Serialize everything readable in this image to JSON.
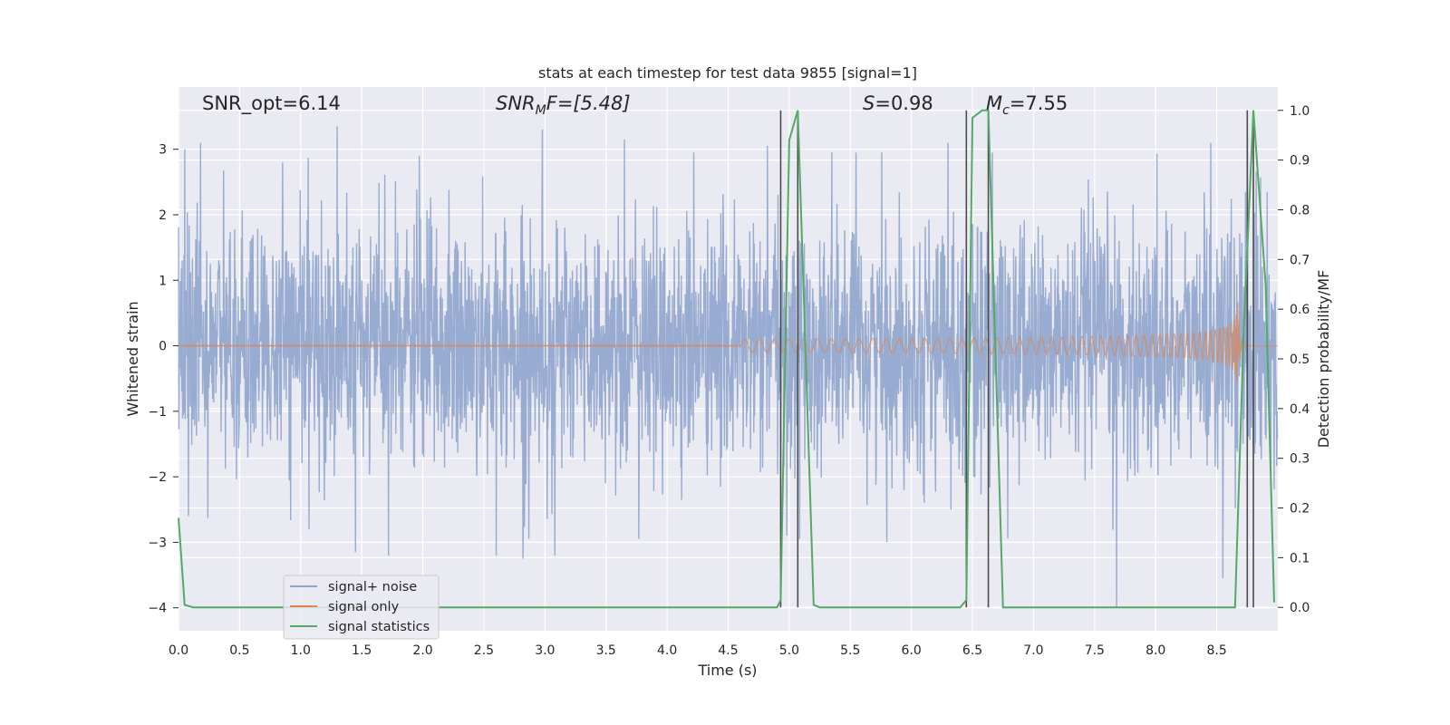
{
  "chart_data": {
    "type": "line",
    "title": "stats at each timestep for test data 9855 [signal=1]",
    "xlabel": "Time (s)",
    "ylabel": "Whitened strain",
    "y2label": "Detection probability/MF",
    "xlim": [
      0,
      9
    ],
    "ylim": [
      -4.35,
      3.95
    ],
    "y2lim": [
      -0.047,
      1.047
    ],
    "x_ticks": [
      0.0,
      0.5,
      1.0,
      1.5,
      2.0,
      2.5,
      3.0,
      3.5,
      4.0,
      4.5,
      5.0,
      5.5,
      6.0,
      6.5,
      7.0,
      7.5,
      8.0,
      8.5
    ],
    "x_tick_labels": [
      "0.0",
      "0.5",
      "1.0",
      "1.5",
      "2.0",
      "2.5",
      "3.0",
      "3.5",
      "4.0",
      "4.5",
      "5.0",
      "5.5",
      "6.0",
      "6.5",
      "7.0",
      "7.5",
      "8.0",
      "8.5"
    ],
    "y_ticks": [
      3,
      2,
      1,
      0,
      -1,
      -2,
      -3,
      -4
    ],
    "y_tick_labels": [
      "3",
      "2",
      "1",
      "0",
      "−1",
      "−2",
      "−3",
      "−4"
    ],
    "y2_ticks": [
      1.0,
      0.9,
      0.8,
      0.7,
      0.6,
      0.5,
      0.4,
      0.3,
      0.2,
      0.1,
      0.0
    ],
    "y2_tick_labels": [
      "1.0",
      "0.9",
      "0.8",
      "0.7",
      "0.6",
      "0.5",
      "0.4",
      "0.3",
      "0.2",
      "0.1",
      "0.0"
    ],
    "grid": true,
    "legend_position": "lower-left",
    "annotations": {
      "snr_opt": "SNR_opt=6.14",
      "snr_mf_main": "SNR",
      "snr_mf_sub": "M",
      "snr_mf_rest": "F=[5.48]",
      "s_var": "S",
      "s_rest": "=0.98",
      "mc_var": "M",
      "mc_sub": "c",
      "mc_rest": "=7.55"
    },
    "series": [
      {
        "name": "signal+ noise",
        "color": "#8fa4cc",
        "noise_envelope": {
          "typical_abs": 1.7,
          "extreme_abs": 3.35
        },
        "peaks_x": [
          0.05,
          0.18,
          1.3,
          1.97,
          2.98,
          3.65,
          4.82,
          5.35,
          6.3,
          8.45,
          8.75
        ],
        "peaks_y": [
          3.0,
          3.1,
          3.35,
          2.9,
          3.3,
          3.15,
          3.05,
          2.95,
          3.1,
          3.1,
          3.2
        ],
        "troughs_x": [
          0.08,
          1.45,
          1.72,
          2.6,
          2.82,
          3.08,
          4.98,
          5.8,
          7.68,
          8.55
        ],
        "troughs_y": [
          -2.6,
          -3.15,
          -3.2,
          -3.2,
          -3.25,
          -3.2,
          -2.9,
          -3.0,
          -4.0,
          -3.55
        ]
      },
      {
        "name": "signal only",
        "color": "#dd8452",
        "chirp_start_x": 4.6,
        "merger_x": 8.68,
        "max_amp": 0.82
      },
      {
        "name": "signal statistics",
        "color": "#55a868",
        "x": [
          0.0,
          0.05,
          0.12,
          4.85,
          4.9,
          4.93,
          5.0,
          5.07,
          5.2,
          5.25,
          6.4,
          6.45,
          6.5,
          6.58,
          6.63,
          6.75,
          8.65,
          8.72,
          8.8,
          8.9,
          8.97
        ],
        "y": [
          0.18,
          0.005,
          0.0,
          0.0,
          0.0,
          0.015,
          0.94,
          1.0,
          0.005,
          0.0,
          0.0,
          0.015,
          0.985,
          1.0,
          1.0,
          0.0,
          0.0,
          0.55,
          1.0,
          0.65,
          0.01
        ]
      }
    ],
    "vertical_lines_x": [
      4.93,
      5.07,
      6.45,
      6.63,
      8.75,
      8.8
    ],
    "vertical_lines_color": "#4c4c4c"
  }
}
